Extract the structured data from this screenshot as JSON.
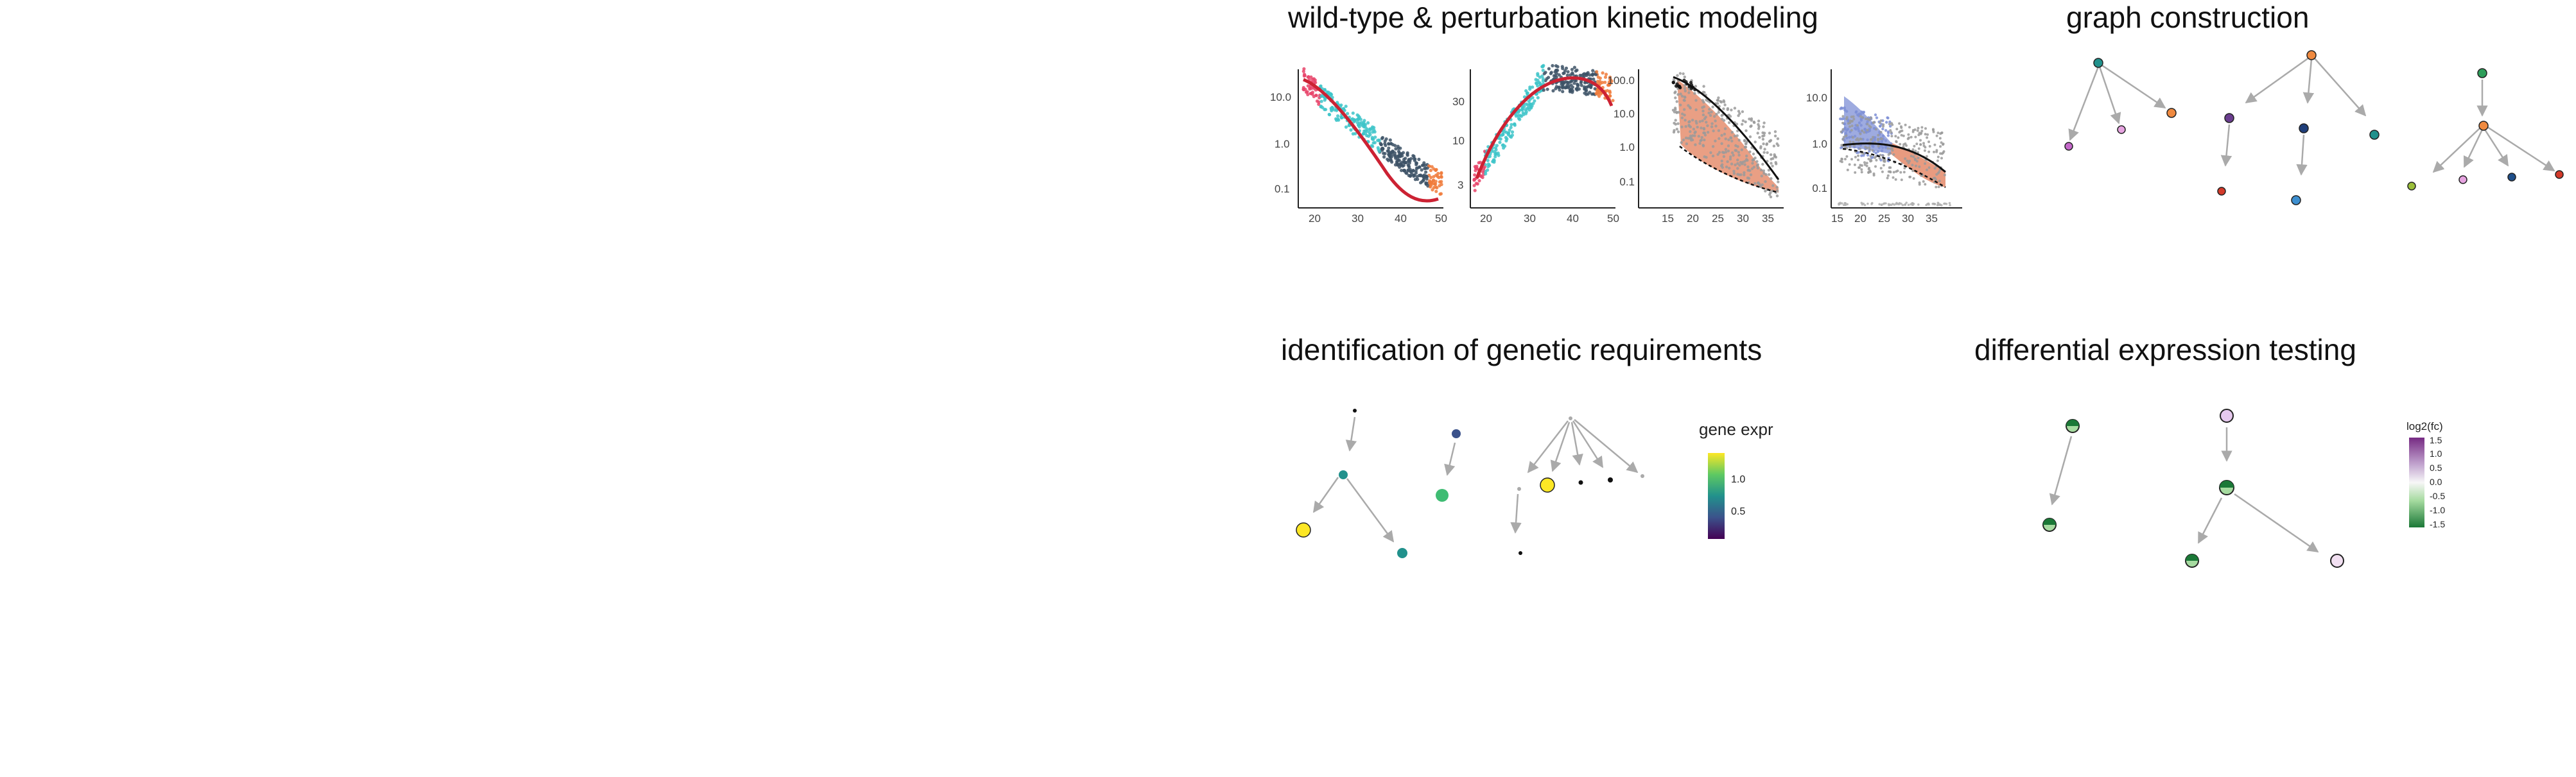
{
  "panels": {
    "kinetic": {
      "title": "wild-type & perturbation kinetic modeling"
    },
    "graph": {
      "title": "graph construction"
    },
    "genetic": {
      "title": "identification of genetic requirements"
    },
    "de": {
      "title": "differential expression testing"
    }
  },
  "chart_data": [
    {
      "type": "scatter",
      "scale_y": "log",
      "x_ticks": [
        "20",
        "30",
        "40",
        "50"
      ],
      "y_ticks": [
        "10.0",
        "1.0",
        "0.1"
      ]
    },
    {
      "type": "scatter",
      "scale_y": "log",
      "x_ticks": [
        "20",
        "30",
        "40",
        "50"
      ],
      "y_ticks": [
        "30",
        "10",
        "3"
      ]
    },
    {
      "type": "area",
      "scale_y": "log",
      "x_ticks": [
        "15",
        "20",
        "25",
        "30",
        "35"
      ],
      "y_ticks": [
        "100.0",
        "10.0",
        "1.0",
        "0.1"
      ]
    },
    {
      "type": "area",
      "scale_y": "log",
      "x_ticks": [
        "15",
        "20",
        "25",
        "30",
        "35"
      ],
      "y_ticks": [
        "10.0",
        "1.0",
        "0.1"
      ]
    }
  ],
  "legend_gene": {
    "title": "gene expr",
    "ticks": [
      "1.0",
      "0.5"
    ]
  },
  "legend_fc": {
    "title": "log2(fc)",
    "ticks": [
      "1.5",
      "1.0",
      "0.5",
      "0.0",
      "-0.5",
      "-1.0",
      "-1.5"
    ]
  },
  "colors": {
    "curve": "#cc2233",
    "band_orange": "#e07a55",
    "band_blue": "#7e8fd6",
    "arrow": "#aaaaaa"
  }
}
